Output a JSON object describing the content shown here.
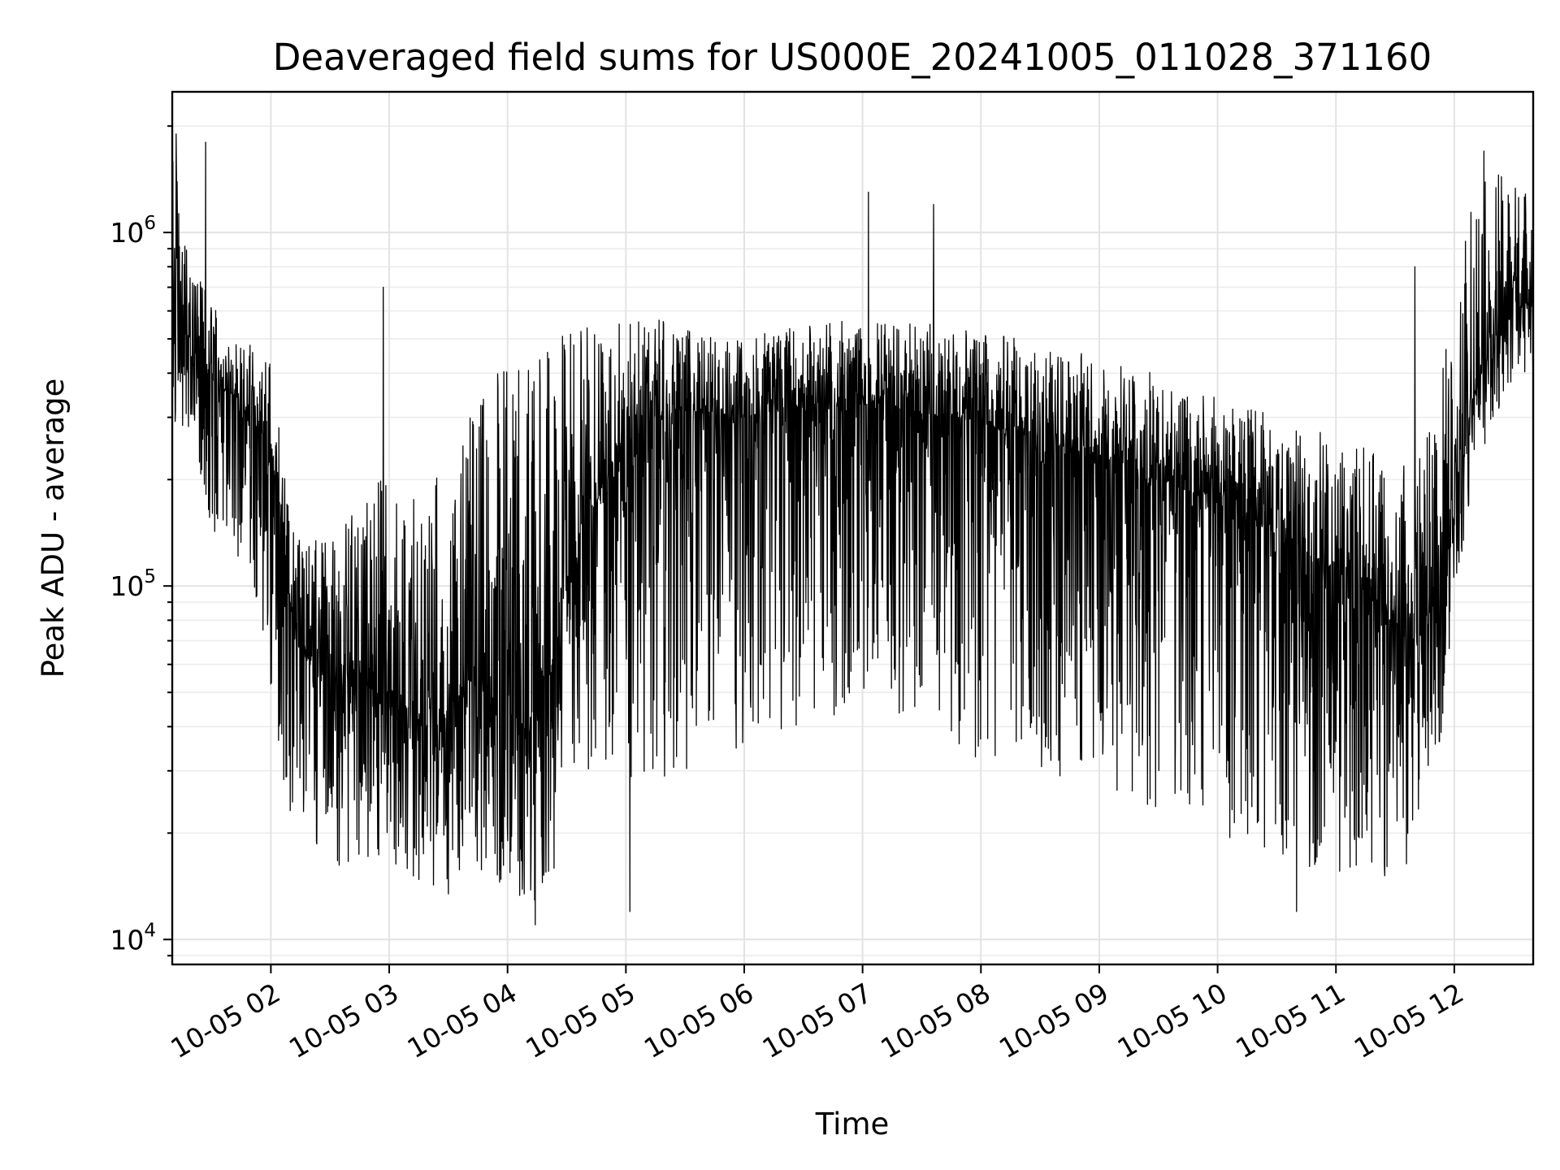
{
  "chart_data": {
    "type": "line",
    "title": "Deaveraged field sums for US000E_20241005_011028_371160",
    "xlabel": "Time",
    "ylabel": "Peak ADU - average",
    "yscale": "log",
    "xlim": [
      "2024-10-05 01:10",
      "2024-10-05 12:40"
    ],
    "ylim": [
      8500,
      2500000
    ],
    "x_ticks": [
      {
        "value": "2024-10-05 02:00",
        "label": "10-05 02"
      },
      {
        "value": "2024-10-05 03:00",
        "label": "10-05 03"
      },
      {
        "value": "2024-10-05 04:00",
        "label": "10-05 04"
      },
      {
        "value": "2024-10-05 05:00",
        "label": "10-05 05"
      },
      {
        "value": "2024-10-05 06:00",
        "label": "10-05 06"
      },
      {
        "value": "2024-10-05 07:00",
        "label": "10-05 07"
      },
      {
        "value": "2024-10-05 08:00",
        "label": "10-05 08"
      },
      {
        "value": "2024-10-05 09:00",
        "label": "10-05 09"
      },
      {
        "value": "2024-10-05 10:00",
        "label": "10-05 10"
      },
      {
        "value": "2024-10-05 11:00",
        "label": "10-05 11"
      },
      {
        "value": "2024-10-05 12:00",
        "label": "10-05 12"
      }
    ],
    "y_ticks": [
      {
        "value": 10000,
        "base": "10",
        "exp": "4"
      },
      {
        "value": 100000,
        "base": "10",
        "exp": "5"
      },
      {
        "value": 1000000,
        "base": "10",
        "exp": "6"
      }
    ],
    "grid": true,
    "line_color": "#000000",
    "series": [
      {
        "x": [
          "2024-10-05 01:10",
          "2024-10-05 01:20",
          "2024-10-05 01:30",
          "2024-10-05 01:40",
          "2024-10-05 01:50",
          "2024-10-05 02:00",
          "2024-10-05 02:10",
          "2024-10-05 02:20",
          "2024-10-05 02:30",
          "2024-10-05 02:40",
          "2024-10-05 02:50",
          "2024-10-05 03:00",
          "2024-10-05 03:10",
          "2024-10-05 03:20",
          "2024-10-05 03:30",
          "2024-10-05 03:40",
          "2024-10-05 03:50",
          "2024-10-05 04:00",
          "2024-10-05 04:10",
          "2024-10-05 04:20",
          "2024-10-05 04:30",
          "2024-10-05 04:40",
          "2024-10-05 04:50",
          "2024-10-05 05:00",
          "2024-10-05 05:10",
          "2024-10-05 05:20",
          "2024-10-05 05:30",
          "2024-10-05 05:40",
          "2024-10-05 05:50",
          "2024-10-05 06:00",
          "2024-10-05 06:10",
          "2024-10-05 06:20",
          "2024-10-05 06:30",
          "2024-10-05 06:40",
          "2024-10-05 06:50",
          "2024-10-05 07:00",
          "2024-10-05 07:10",
          "2024-10-05 07:20",
          "2024-10-05 07:30",
          "2024-10-05 07:40",
          "2024-10-05 07:50",
          "2024-10-05 08:00",
          "2024-10-05 08:10",
          "2024-10-05 08:20",
          "2024-10-05 08:30",
          "2024-10-05 08:40",
          "2024-10-05 08:50",
          "2024-10-05 09:00",
          "2024-10-05 09:10",
          "2024-10-05 09:20",
          "2024-10-05 09:30",
          "2024-10-05 09:40",
          "2024-10-05 09:50",
          "2024-10-05 10:00",
          "2024-10-05 10:10",
          "2024-10-05 10:20",
          "2024-10-05 10:30",
          "2024-10-05 10:40",
          "2024-10-05 10:50",
          "2024-10-05 11:00",
          "2024-10-05 11:10",
          "2024-10-05 11:20",
          "2024-10-05 11:30",
          "2024-10-05 11:40",
          "2024-10-05 11:50",
          "2024-10-05 12:00",
          "2024-10-05 12:10",
          "2024-10-05 12:20",
          "2024-10-05 12:30",
          "2024-10-05 12:40"
        ],
        "y": [
          500000,
          450000,
          380000,
          350000,
          300000,
          250000,
          90000,
          60000,
          55000,
          50000,
          55000,
          50000,
          45000,
          40000,
          45000,
          55000,
          50000,
          45000,
          40000,
          60000,
          100000,
          150000,
          200000,
          250000,
          280000,
          300000,
          320000,
          310000,
          300000,
          300000,
          310000,
          320000,
          320000,
          330000,
          320000,
          330000,
          330000,
          320000,
          310000,
          300000,
          300000,
          290000,
          280000,
          270000,
          260000,
          250000,
          240000,
          230000,
          220000,
          210000,
          200000,
          190000,
          180000,
          170000,
          160000,
          150000,
          140000,
          130000,
          120000,
          110000,
          100000,
          90000,
          80000,
          70000,
          90000,
          150000,
          350000,
          500000,
          600000,
          650000
        ],
        "y_low": [
          300000,
          250000,
          130000,
          120000,
          110000,
          40000,
          20000,
          18000,
          17000,
          15000,
          16000,
          16000,
          15000,
          14000,
          13000,
          15000,
          15000,
          14000,
          12000,
          14000,
          20000,
          25000,
          30000,
          30000,
          25000,
          25000,
          30000,
          30000,
          32000,
          35000,
          35000,
          40000,
          40000,
          40000,
          40000,
          40000,
          40000,
          38000,
          36000,
          34000,
          33000,
          32000,
          30000,
          30000,
          28000,
          28000,
          27000,
          26000,
          25000,
          24000,
          22000,
          21000,
          20000,
          19000,
          18000,
          17000,
          16000,
          16000,
          16000,
          15000,
          15000,
          15000,
          15000,
          16000,
          25000,
          90000,
          200000,
          300000,
          350000,
          380000
        ],
        "y_high": [
          1800000,
          800000,
          650000,
          500000,
          480000,
          450000,
          150000,
          140000,
          130000,
          160000,
          200000,
          220000,
          180000,
          200000,
          240000,
          300000,
          400000,
          450000,
          480000,
          500000,
          550000,
          560000,
          580000,
          600000,
          580000,
          560000,
          540000,
          520000,
          500000,
          500000,
          520000,
          540000,
          560000,
          580000,
          560000,
          550000,
          560000,
          560000,
          560000,
          550000,
          540000,
          520000,
          520000,
          500000,
          480000,
          460000,
          460000,
          450000,
          440000,
          420000,
          400000,
          380000,
          360000,
          340000,
          330000,
          320000,
          300000,
          290000,
          280000,
          260000,
          250000,
          240000,
          230000,
          220000,
          300000,
          700000,
          1300000,
          1500000,
          1400000,
          1300000
        ],
        "spikes": [
          {
            "x": "2024-10-05 01:12",
            "y": 1900000
          },
          {
            "x": "2024-10-05 01:27",
            "y": 1800000
          },
          {
            "x": "2024-10-05 02:57",
            "y": 700000
          },
          {
            "x": "2024-10-05 04:14",
            "y": 11000
          },
          {
            "x": "2024-10-05 05:02",
            "y": 12000
          },
          {
            "x": "2024-10-05 07:03",
            "y": 1300000
          },
          {
            "x": "2024-10-05 07:36",
            "y": 1200000
          },
          {
            "x": "2024-10-05 10:40",
            "y": 12000
          },
          {
            "x": "2024-10-05 11:40",
            "y": 800000
          },
          {
            "x": "2024-10-05 12:15",
            "y": 1700000
          }
        ]
      }
    ]
  }
}
